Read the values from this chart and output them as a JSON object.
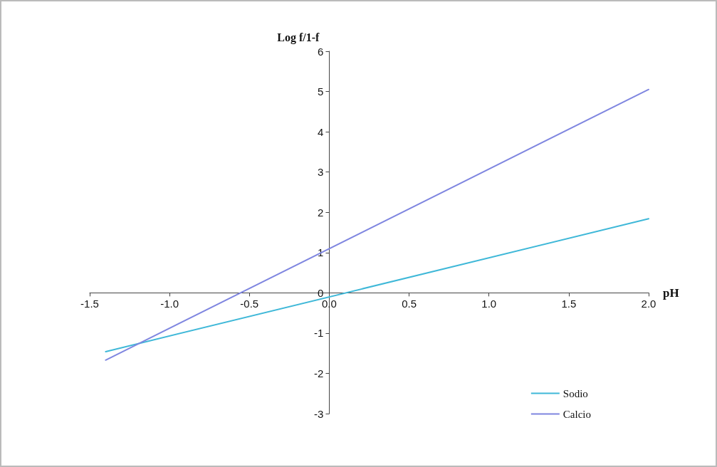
{
  "chart_data": {
    "type": "line",
    "xlabel": "pH",
    "ylabel": "Log f/1-f",
    "x": [
      -1.4,
      2.0
    ],
    "xlim": [
      -1.5,
      2.0
    ],
    "xticks": [
      {
        "value": -1.5,
        "label": "-1.5"
      },
      {
        "value": -1.0,
        "label": "-1.0"
      },
      {
        "value": -0.5,
        "label": "-0.5"
      },
      {
        "value": 0,
        "label": "0.0"
      },
      {
        "value": 0.5,
        "label": "0.5"
      },
      {
        "value": 1.0,
        "label": "1.0"
      },
      {
        "value": 1.5,
        "label": "1.5"
      },
      {
        "value": 2.0,
        "label": "2.0"
      }
    ],
    "ylim": [
      -3,
      6
    ],
    "yticks": [
      -3,
      -2,
      -1,
      0,
      1,
      2,
      3,
      4,
      5,
      6
    ],
    "series": [
      {
        "name": "Sodio",
        "color": "#3fb8d8",
        "values": [
          -1.46,
          1.84
        ]
      },
      {
        "name": "Calcio",
        "color": "#7f86e0",
        "values": [
          -1.67,
          5.05
        ]
      }
    ],
    "legend": "bottom right",
    "grid": false,
    "marker": "none",
    "line_style": "solid"
  }
}
